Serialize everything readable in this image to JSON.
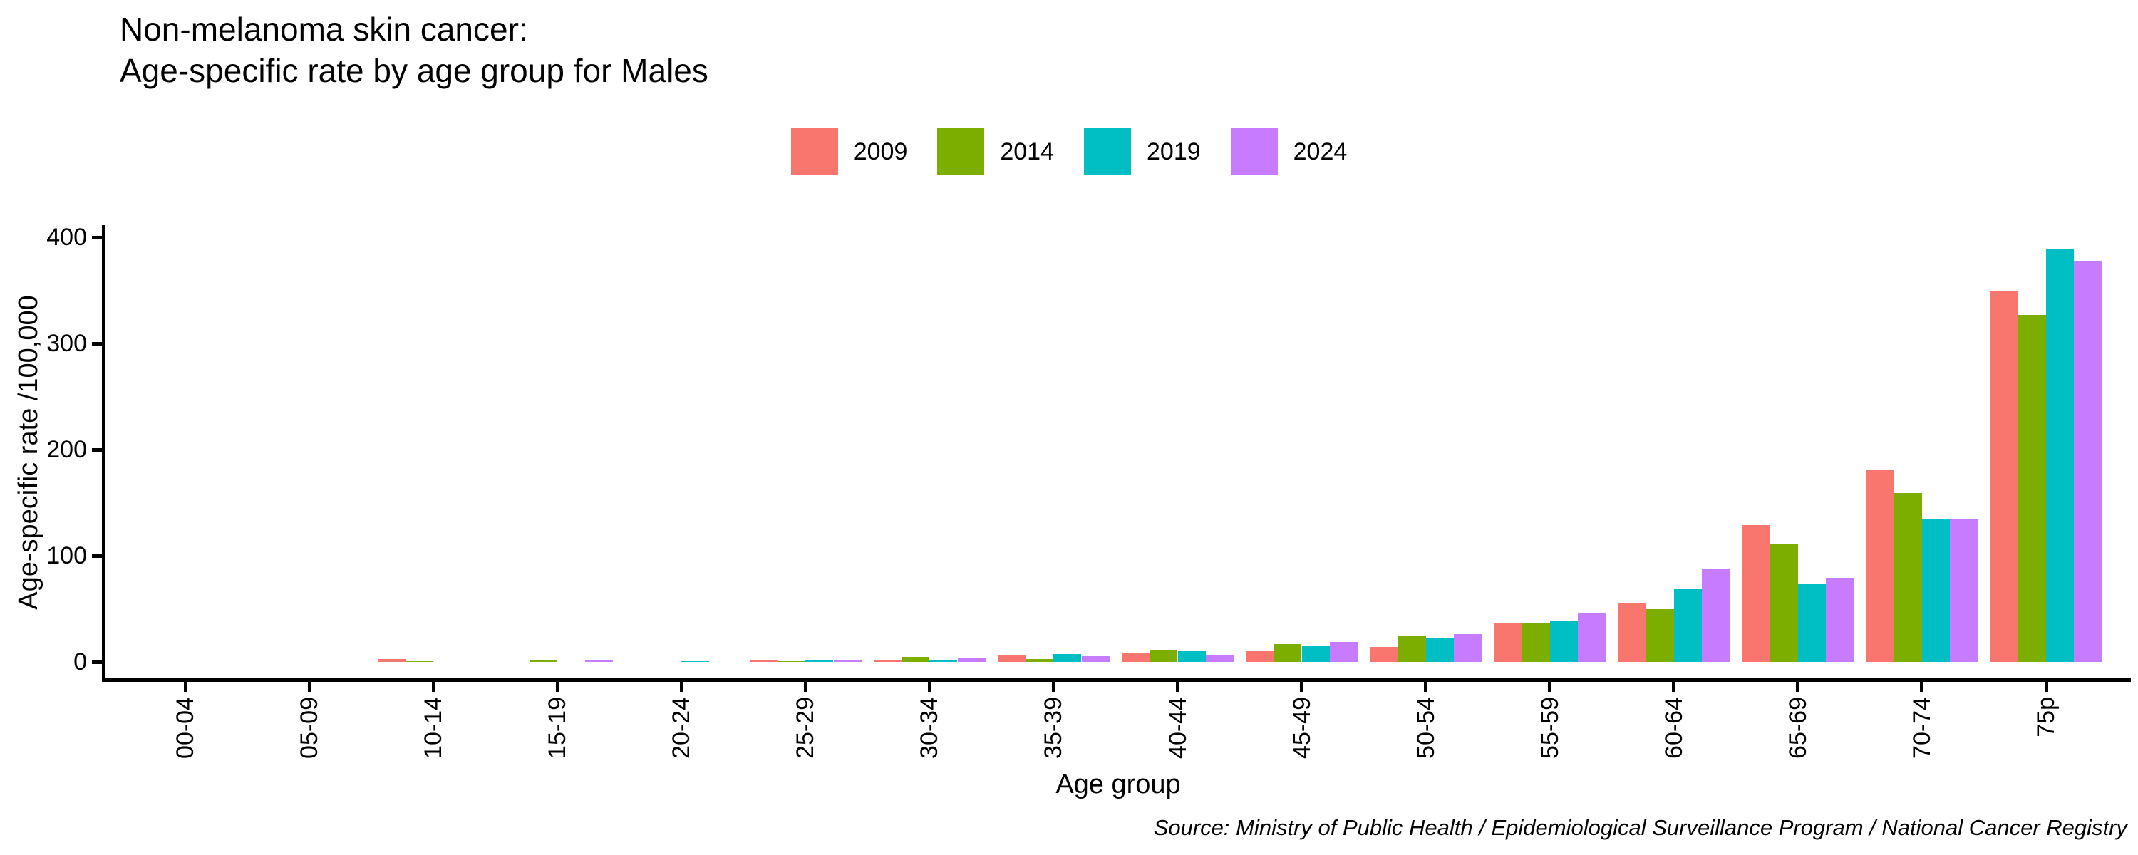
{
  "title": {
    "line1": "Non-melanoma skin cancer:",
    "line2": "Age-specific rate by age group for Males"
  },
  "source": "Source: Ministry of Public Health / Epidemiological Surveillance Program / National Cancer Registry",
  "chart_data": {
    "type": "bar",
    "title": "Non-melanoma skin cancer: Age-specific rate by age group for Males",
    "xlabel": "Age group",
    "ylabel": "Age-specific rate /100,000",
    "categories": [
      "00-04",
      "05-09",
      "10-14",
      "15-19",
      "20-24",
      "25-29",
      "30-34",
      "35-39",
      "40-44",
      "45-49",
      "50-54",
      "55-59",
      "60-64",
      "65-69",
      "70-74",
      "75p"
    ],
    "series": [
      {
        "name": "2009",
        "color": "#F8766D",
        "values": [
          0,
          0,
          3,
          0,
          0,
          1.5,
          2,
          6.5,
          9,
          11,
          14,
          37,
          55,
          129,
          181,
          349
        ]
      },
      {
        "name": "2014",
        "color": "#7CAE00",
        "values": [
          0,
          0,
          1,
          1.5,
          0,
          1,
          4.5,
          2.5,
          11.5,
          17,
          25,
          36,
          50,
          111,
          159,
          327
        ]
      },
      {
        "name": "2019",
        "color": "#00BFC4",
        "values": [
          0,
          0,
          0,
          0,
          1,
          2,
          2,
          7.5,
          11,
          15.5,
          23,
          38,
          69,
          74,
          134,
          389
        ]
      },
      {
        "name": "2024",
        "color": "#C77CFF",
        "values": [
          0,
          0,
          0,
          1.5,
          0,
          1.5,
          4,
          5.5,
          7,
          19,
          26,
          46,
          88,
          79,
          135,
          377
        ]
      }
    ],
    "ylim": [
      0,
      400
    ],
    "yticks": [
      0,
      100,
      200,
      300,
      400
    ],
    "grid": false,
    "legend_position": "top",
    "bar_mode": "grouped"
  }
}
